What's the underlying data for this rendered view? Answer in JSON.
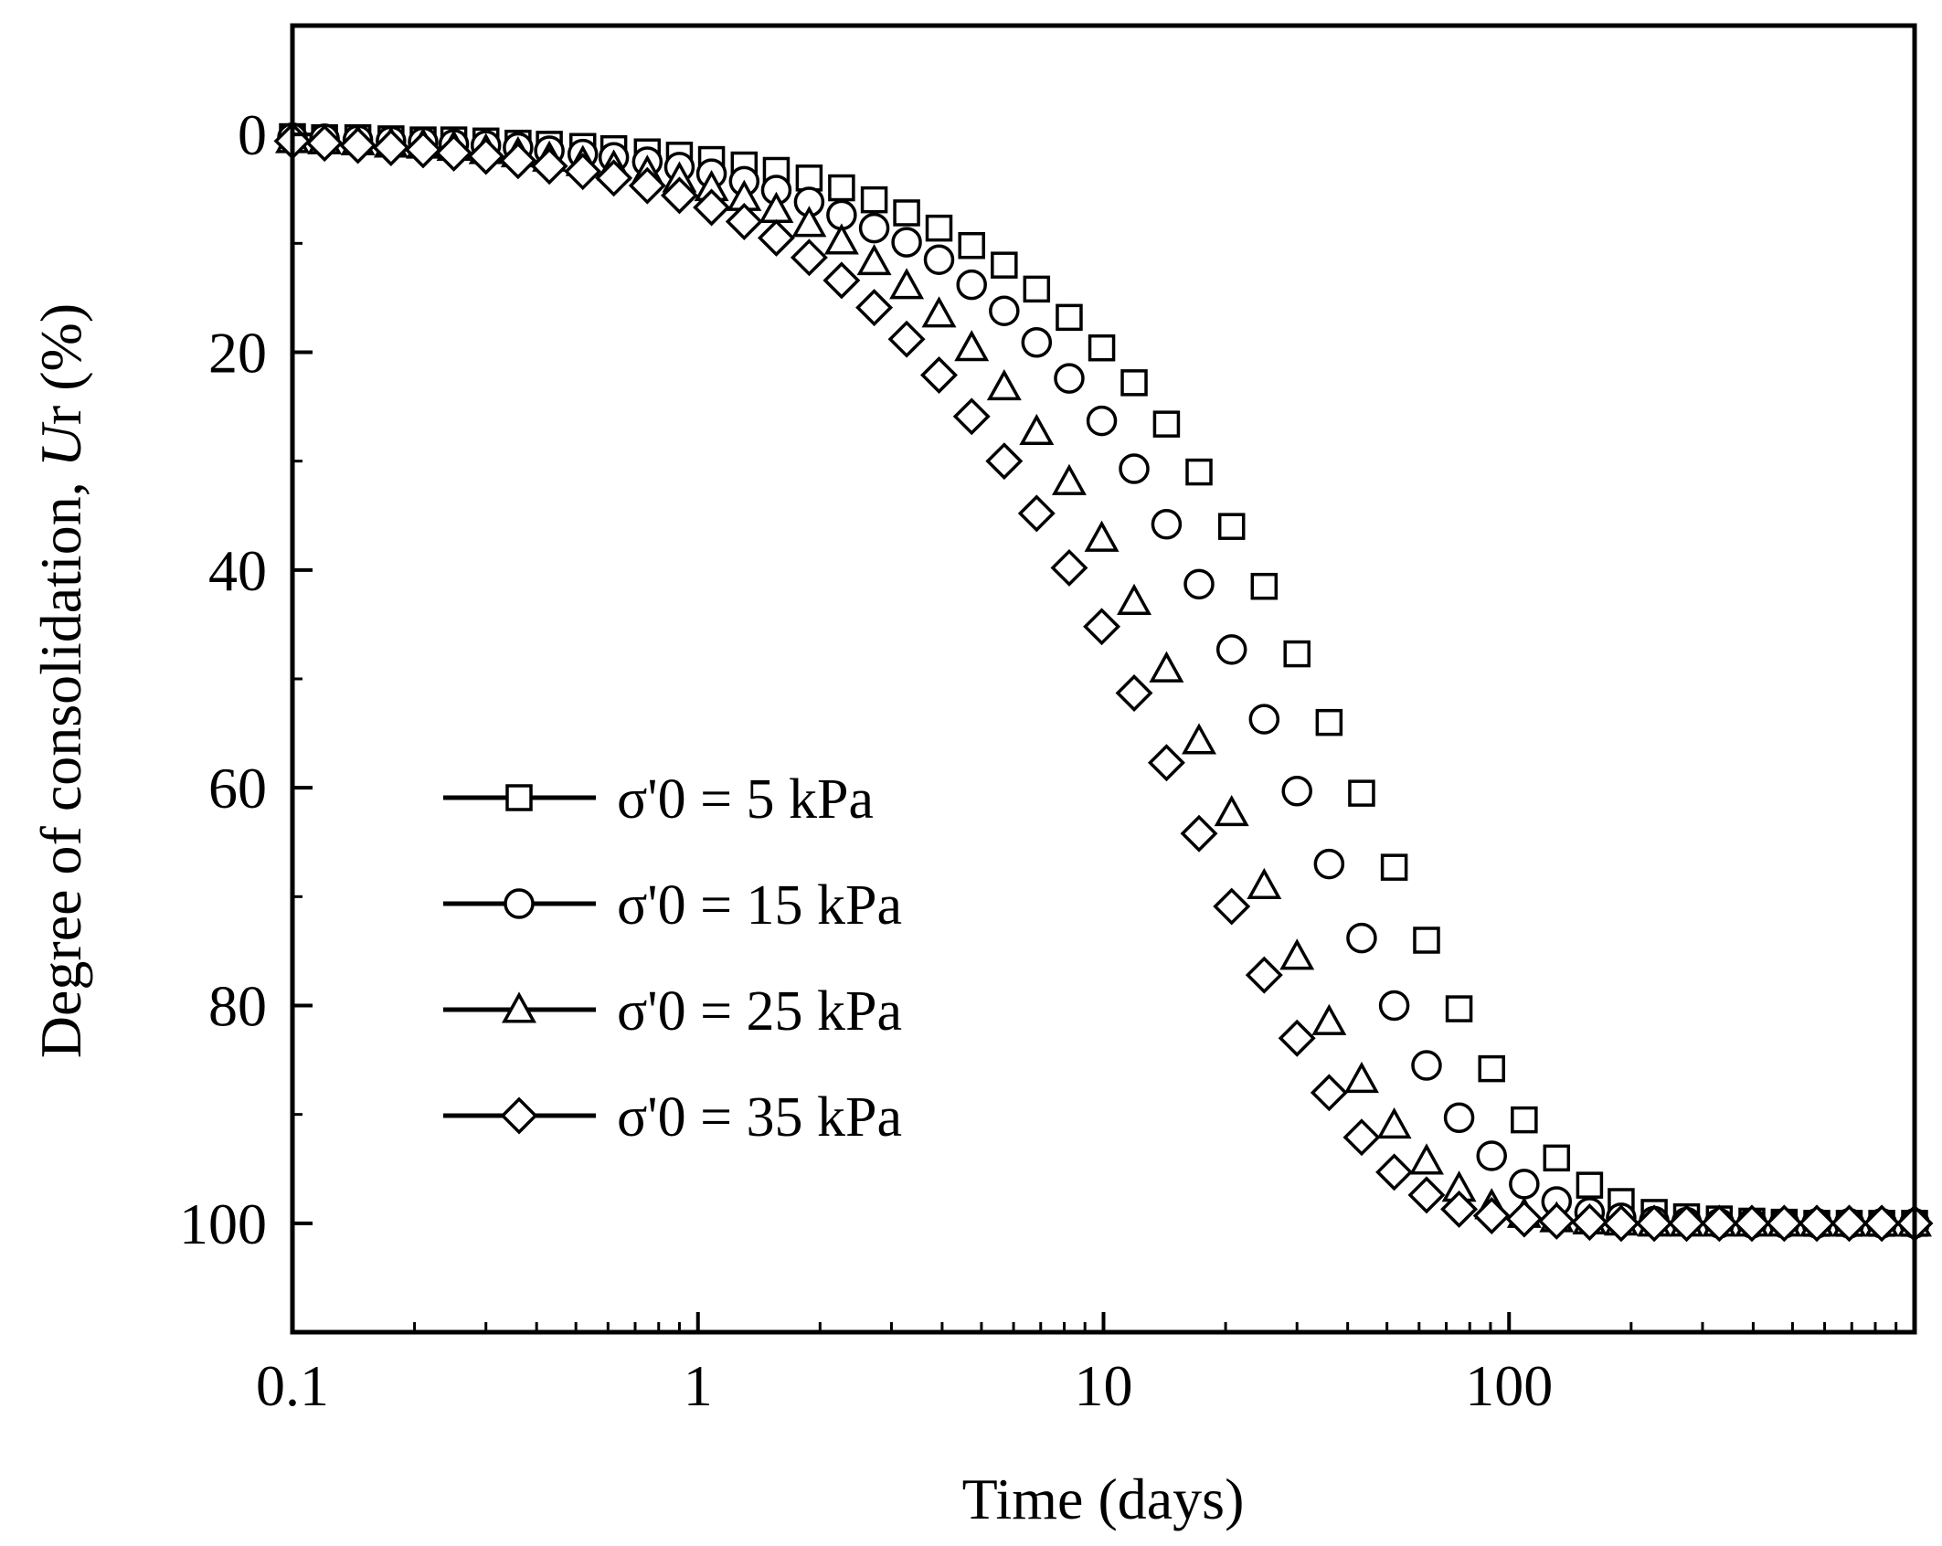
{
  "chart_data": {
    "type": "scatter",
    "title": "",
    "xlabel": "Time (days)",
    "ylabel_prefix": "Degree of  consolidation, ",
    "ylabel_italic": "U",
    "ylabel_sub": "r",
    "ylabel_suffix": " (%)",
    "x_scale": "log",
    "xlim": [
      0.1,
      1000
    ],
    "ylim": [
      -10,
      110
    ],
    "y_inverted": true,
    "x_ticks": [
      {
        "value": 0.1,
        "label": "0.1"
      },
      {
        "value": 1,
        "label": "1"
      },
      {
        "value": 10,
        "label": "10"
      },
      {
        "value": 100,
        "label": "100"
      }
    ],
    "y_ticks": [
      {
        "value": 0,
        "label": "0"
      },
      {
        "value": 20,
        "label": "20"
      },
      {
        "value": 40,
        "label": "40"
      },
      {
        "value": 60,
        "label": "60"
      },
      {
        "value": 80,
        "label": "80"
      },
      {
        "value": 100,
        "label": "100"
      }
    ],
    "y_minor_ticks": [
      10,
      30,
      50,
      70,
      90
    ],
    "legend_position": "lower-left",
    "series": [
      {
        "name": "σ'0 = 5 kPa",
        "marker": "square",
        "x": [
          0.1,
          0.12,
          0.145,
          0.175,
          0.21,
          0.25,
          0.3,
          0.36,
          0.43,
          0.52,
          0.62,
          0.75,
          0.9,
          1.08,
          1.3,
          1.56,
          1.88,
          2.26,
          2.72,
          3.27,
          3.93,
          4.73,
          5.69,
          6.84,
          8.23,
          9.9,
          11.9,
          14.3,
          17.2,
          20.7,
          24.9,
          30.0,
          36.0,
          43.3,
          52.1,
          62.6,
          75.3,
          90.6,
          109,
          131,
          158,
          189,
          228,
          274,
          330,
          397,
          477,
          574,
          690,
          830,
          1000
        ],
        "values": [
          0.2,
          0.3,
          0.3,
          0.4,
          0.5,
          0.5,
          0.6,
          0.8,
          0.9,
          1.1,
          1.3,
          1.6,
          1.9,
          2.3,
          2.8,
          3.3,
          4.0,
          4.9,
          6.0,
          7.2,
          8.6,
          10.2,
          12.0,
          14.2,
          16.8,
          19.6,
          22.8,
          26.6,
          31.0,
          36.0,
          41.5,
          47.7,
          54.0,
          60.5,
          67.3,
          74.0,
          80.3,
          85.8,
          90.5,
          94.0,
          96.5,
          98.0,
          99.0,
          99.4,
          99.6,
          99.8,
          99.9,
          100,
          100,
          100,
          100
        ]
      },
      {
        "name": "σ'0 = 15 kPa",
        "marker": "circle",
        "x": [
          0.1,
          0.12,
          0.145,
          0.175,
          0.21,
          0.25,
          0.3,
          0.36,
          0.43,
          0.52,
          0.62,
          0.75,
          0.9,
          1.08,
          1.3,
          1.56,
          1.88,
          2.26,
          2.72,
          3.27,
          3.93,
          4.73,
          5.69,
          6.84,
          8.23,
          9.9,
          11.9,
          14.3,
          17.2,
          20.7,
          24.9,
          30.0,
          36.0,
          43.3,
          52.1,
          62.6,
          75.3,
          90.6,
          109,
          131,
          158,
          189,
          228,
          274,
          330,
          397,
          477,
          574,
          690,
          830,
          1000
        ],
        "values": [
          0.3,
          0.4,
          0.5,
          0.6,
          0.7,
          0.9,
          1.0,
          1.2,
          1.5,
          1.8,
          2.1,
          2.5,
          3.0,
          3.6,
          4.3,
          5.1,
          6.2,
          7.4,
          8.6,
          9.9,
          11.5,
          13.8,
          16.2,
          19.1,
          22.4,
          26.3,
          30.7,
          35.8,
          41.3,
          47.3,
          53.7,
          60.3,
          67.0,
          73.8,
          80.0,
          85.5,
          90.3,
          93.8,
          96.4,
          98.0,
          99.0,
          99.5,
          99.8,
          99.9,
          100,
          100,
          100,
          100,
          100,
          100,
          100
        ]
      },
      {
        "name": "σ'0 = 25 kPa",
        "marker": "triangle",
        "x": [
          0.1,
          0.12,
          0.145,
          0.175,
          0.21,
          0.25,
          0.3,
          0.36,
          0.43,
          0.52,
          0.62,
          0.75,
          0.9,
          1.08,
          1.3,
          1.56,
          1.88,
          2.26,
          2.72,
          3.27,
          3.93,
          4.73,
          5.69,
          6.84,
          8.23,
          9.9,
          11.9,
          14.3,
          17.2,
          20.7,
          24.9,
          30.0,
          36.0,
          43.3,
          52.1,
          62.6,
          75.3,
          90.6,
          109,
          131,
          158,
          189,
          228,
          274,
          330,
          397,
          477,
          574,
          690,
          830,
          1000
        ],
        "values": [
          0.5,
          0.6,
          0.7,
          0.9,
          1.0,
          1.2,
          1.5,
          1.8,
          2.2,
          2.6,
          3.0,
          3.5,
          4.1,
          4.9,
          5.8,
          6.9,
          8.2,
          9.8,
          11.7,
          13.9,
          16.5,
          19.6,
          23.2,
          27.3,
          31.9,
          37.1,
          42.9,
          49.1,
          55.7,
          62.3,
          69.0,
          75.5,
          81.5,
          86.8,
          91.0,
          94.3,
          96.8,
          98.4,
          99.2,
          99.6,
          99.8,
          99.9,
          100,
          100,
          100,
          100,
          100,
          100,
          100,
          100,
          100
        ]
      },
      {
        "name": "σ'0 = 35 kPa",
        "marker": "diamond",
        "x": [
          0.1,
          0.12,
          0.145,
          0.175,
          0.21,
          0.25,
          0.3,
          0.36,
          0.43,
          0.52,
          0.62,
          0.75,
          0.9,
          1.08,
          1.3,
          1.56,
          1.88,
          2.26,
          2.72,
          3.27,
          3.93,
          4.73,
          5.69,
          6.84,
          8.23,
          9.9,
          11.9,
          14.3,
          17.2,
          20.7,
          24.9,
          30.0,
          36.0,
          43.3,
          52.1,
          62.6,
          75.3,
          90.6,
          109,
          131,
          158,
          189,
          228,
          274,
          330,
          397,
          477,
          574,
          690,
          830,
          1000
        ],
        "values": [
          0.6,
          0.8,
          1.0,
          1.2,
          1.4,
          1.7,
          2.0,
          2.4,
          2.9,
          3.4,
          4.0,
          4.7,
          5.6,
          6.7,
          8.0,
          9.5,
          11.3,
          13.4,
          15.9,
          18.8,
          22.1,
          25.9,
          30.0,
          34.8,
          39.8,
          45.2,
          51.3,
          57.7,
          64.2,
          70.9,
          77.2,
          83.0,
          88.0,
          92.1,
          95.3,
          97.4,
          98.7,
          99.3,
          99.6,
          99.8,
          99.9,
          100,
          100,
          100,
          100,
          100,
          100,
          100,
          100,
          100,
          100
        ]
      }
    ]
  }
}
